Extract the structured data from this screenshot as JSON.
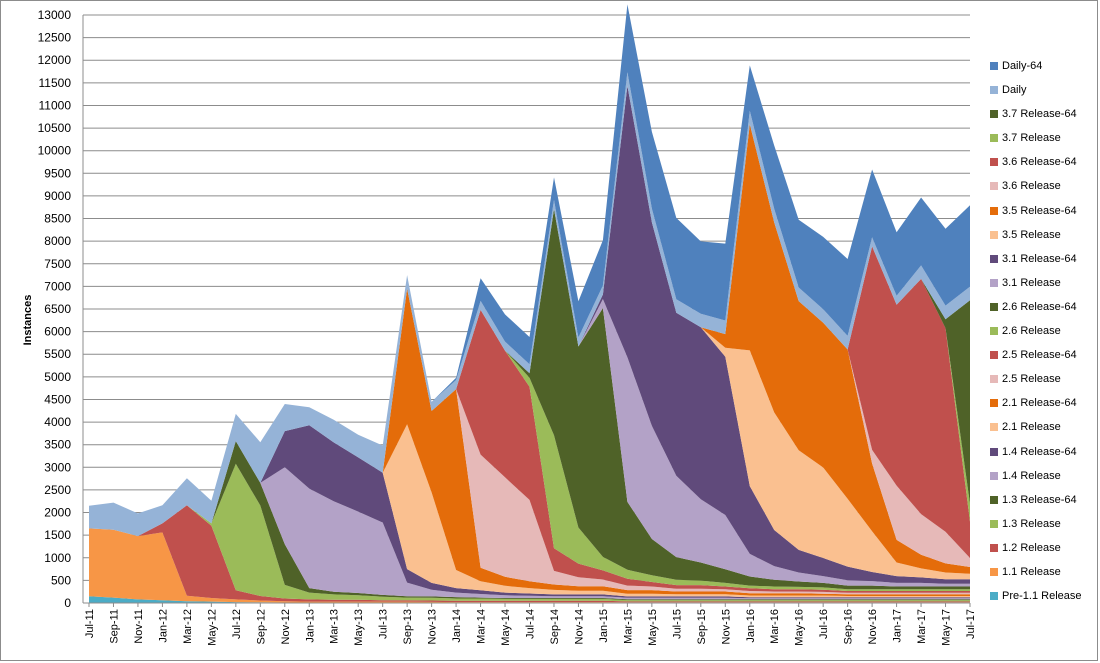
{
  "chart_data": {
    "type": "area",
    "stacked": true,
    "title": "",
    "xlabel": "",
    "ylabel": "Instances",
    "ylim": [
      0,
      13000
    ],
    "ytick_step": 500,
    "grid": "horizontal",
    "legend_position": "right",
    "x": [
      "Jul-11",
      "Sep-11",
      "Nov-11",
      "Jan-12",
      "Mar-12",
      "May-12",
      "Jul-12",
      "Sep-12",
      "Nov-12",
      "Jan-13",
      "Mar-13",
      "May-13",
      "Jul-13",
      "Sep-13",
      "Nov-13",
      "Jan-14",
      "Mar-14",
      "May-14",
      "Jul-14",
      "Sep-14",
      "Nov-14",
      "Jan-15",
      "Mar-15",
      "May-15",
      "Jul-15",
      "Sep-15",
      "Nov-15",
      "Jan-16",
      "Mar-16",
      "May-16",
      "Jul-16",
      "Sep-16",
      "Nov-16",
      "Jan-17",
      "Mar-17",
      "May-17",
      "Jul-17"
    ],
    "series": [
      {
        "name": "Pre-1.1 Release",
        "color": "#4bacc6",
        "values": [
          150,
          120,
          80,
          60,
          40,
          30,
          20,
          15,
          10,
          10,
          10,
          10,
          10,
          10,
          5,
          5,
          5,
          5,
          5,
          5,
          5,
          5,
          5,
          5,
          5,
          5,
          5,
          5,
          5,
          5,
          5,
          5,
          5,
          5,
          5,
          5,
          5
        ]
      },
      {
        "name": "1.1 Release",
        "color": "#f79646",
        "values": [
          1500,
          1500,
          1400,
          1500,
          120,
          80,
          60,
          40,
          30,
          20,
          20,
          20,
          20,
          20,
          20,
          15,
          15,
          15,
          15,
          15,
          15,
          15,
          10,
          10,
          10,
          10,
          10,
          10,
          10,
          10,
          10,
          10,
          10,
          10,
          10,
          10,
          10
        ]
      },
      {
        "name": "1.2 Release",
        "color": "#c0504d",
        "values": [
          0,
          0,
          0,
          200,
          2000,
          1600,
          200,
          100,
          60,
          50,
          40,
          40,
          30,
          30,
          30,
          30,
          30,
          30,
          30,
          30,
          30,
          30,
          20,
          20,
          20,
          20,
          20,
          20,
          20,
          20,
          20,
          20,
          20,
          20,
          20,
          20,
          20
        ]
      },
      {
        "name": "1.3 Release",
        "color": "#9bbb59",
        "values": [
          0,
          0,
          0,
          0,
          0,
          50,
          2800,
          2000,
          300,
          150,
          120,
          100,
          80,
          60,
          60,
          50,
          50,
          40,
          40,
          40,
          40,
          40,
          30,
          30,
          30,
          30,
          30,
          30,
          30,
          30,
          30,
          30,
          30,
          30,
          30,
          30,
          30
        ]
      },
      {
        "name": "1.3 Release-64",
        "color": "#4f6228",
        "values": [
          0,
          0,
          0,
          0,
          0,
          0,
          500,
          500,
          900,
          100,
          60,
          50,
          40,
          30,
          30,
          30,
          20,
          20,
          20,
          20,
          20,
          20,
          20,
          20,
          20,
          20,
          20,
          20,
          20,
          20,
          20,
          20,
          20,
          20,
          20,
          20,
          20
        ]
      },
      {
        "name": "1.4 Release",
        "color": "#b3a2c7",
        "values": [
          0,
          0,
          0,
          0,
          0,
          0,
          0,
          0,
          1700,
          2200,
          2000,
          1800,
          1600,
          300,
          150,
          100,
          80,
          60,
          50,
          40,
          40,
          40,
          30,
          30,
          30,
          30,
          30,
          20,
          20,
          20,
          20,
          20,
          20,
          20,
          20,
          20,
          20
        ]
      },
      {
        "name": "1.4 Release-64",
        "color": "#604a7b",
        "values": [
          0,
          0,
          0,
          0,
          0,
          0,
          0,
          0,
          800,
          1400,
          1300,
          1200,
          1100,
          300,
          150,
          100,
          80,
          60,
          50,
          40,
          40,
          40,
          30,
          30,
          30,
          30,
          30,
          20,
          20,
          20,
          20,
          20,
          20,
          20,
          20,
          20,
          20
        ]
      },
      {
        "name": "2.1 Release",
        "color": "#fac090",
        "values": [
          0,
          0,
          0,
          0,
          0,
          0,
          0,
          0,
          0,
          0,
          0,
          0,
          0,
          3200,
          2000,
          400,
          200,
          150,
          120,
          100,
          80,
          80,
          60,
          60,
          50,
          50,
          50,
          40,
          40,
          40,
          40,
          30,
          30,
          30,
          30,
          30,
          30
        ]
      },
      {
        "name": "2.1 Release-64",
        "color": "#e46c0a",
        "values": [
          0,
          0,
          0,
          0,
          0,
          0,
          0,
          0,
          0,
          0,
          0,
          0,
          0,
          3000,
          1800,
          4000,
          300,
          200,
          150,
          120,
          100,
          100,
          80,
          80,
          60,
          60,
          60,
          50,
          50,
          50,
          40,
          40,
          40,
          40,
          40,
          40,
          40
        ]
      },
      {
        "name": "2.5 Release",
        "color": "#e6b9b8",
        "values": [
          0,
          0,
          0,
          0,
          0,
          0,
          0,
          0,
          0,
          0,
          0,
          0,
          0,
          0,
          0,
          0,
          2500,
          2200,
          1800,
          300,
          200,
          150,
          100,
          80,
          60,
          60,
          50,
          50,
          40,
          40,
          40,
          30,
          30,
          30,
          30,
          30,
          30
        ]
      },
      {
        "name": "2.5 Release-64",
        "color": "#c0504d",
        "values": [
          0,
          0,
          0,
          0,
          0,
          0,
          0,
          0,
          0,
          0,
          0,
          0,
          0,
          0,
          0,
          0,
          3200,
          2800,
          2500,
          500,
          300,
          200,
          150,
          100,
          80,
          80,
          60,
          60,
          50,
          50,
          50,
          40,
          40,
          40,
          40,
          40,
          40
        ]
      },
      {
        "name": "2.6 Release",
        "color": "#9bbb59",
        "values": [
          0,
          0,
          0,
          0,
          0,
          0,
          0,
          0,
          0,
          0,
          0,
          0,
          0,
          0,
          0,
          0,
          0,
          0,
          200,
          2500,
          800,
          300,
          200,
          150,
          120,
          100,
          80,
          60,
          60,
          50,
          50,
          40,
          40,
          40,
          40,
          40,
          40
        ]
      },
      {
        "name": "2.6 Release-64",
        "color": "#4f6228",
        "values": [
          0,
          0,
          0,
          0,
          0,
          0,
          0,
          0,
          0,
          0,
          0,
          0,
          0,
          0,
          0,
          0,
          0,
          0,
          100,
          5000,
          4000,
          5500,
          1500,
          800,
          500,
          400,
          300,
          200,
          150,
          120,
          100,
          80,
          80,
          60,
          60,
          60,
          60
        ]
      },
      {
        "name": "3.1 Release",
        "color": "#b3a2c7",
        "values": [
          0,
          0,
          0,
          0,
          0,
          0,
          0,
          0,
          0,
          0,
          0,
          0,
          0,
          0,
          0,
          0,
          0,
          0,
          0,
          0,
          0,
          200,
          3200,
          2500,
          1800,
          1400,
          1200,
          500,
          300,
          200,
          150,
          120,
          100,
          80,
          80,
          60,
          60
        ]
      },
      {
        "name": "3.1 Release-64",
        "color": "#604a7b",
        "values": [
          0,
          0,
          0,
          0,
          0,
          0,
          0,
          0,
          0,
          0,
          0,
          0,
          0,
          0,
          0,
          0,
          0,
          0,
          0,
          0,
          0,
          100,
          6000,
          4500,
          3600,
          3800,
          3500,
          1500,
          800,
          500,
          400,
          300,
          200,
          150,
          120,
          100,
          100
        ]
      },
      {
        "name": "3.5 Release",
        "color": "#fac090",
        "values": [
          0,
          0,
          0,
          0,
          0,
          0,
          0,
          0,
          0,
          0,
          0,
          0,
          0,
          0,
          0,
          0,
          0,
          0,
          0,
          0,
          0,
          0,
          0,
          0,
          0,
          0,
          200,
          3000,
          2600,
          2200,
          2000,
          1500,
          900,
          300,
          200,
          150,
          120
        ]
      },
      {
        "name": "3.5 Release-64",
        "color": "#e46c0a",
        "values": [
          0,
          0,
          0,
          0,
          0,
          0,
          0,
          0,
          0,
          0,
          0,
          0,
          0,
          0,
          0,
          0,
          0,
          0,
          0,
          0,
          0,
          0,
          0,
          0,
          0,
          0,
          300,
          5000,
          4200,
          3300,
          3200,
          3300,
          1500,
          500,
          300,
          200,
          150
        ]
      },
      {
        "name": "3.6 Release",
        "color": "#e6b9b8",
        "values": [
          0,
          0,
          0,
          0,
          0,
          0,
          0,
          0,
          0,
          0,
          0,
          0,
          0,
          0,
          0,
          0,
          0,
          0,
          0,
          0,
          0,
          0,
          0,
          0,
          0,
          0,
          0,
          0,
          0,
          0,
          0,
          0,
          300,
          1200,
          900,
          700,
          200
        ]
      },
      {
        "name": "3.6 Release-64",
        "color": "#c0504d",
        "values": [
          0,
          0,
          0,
          0,
          0,
          0,
          0,
          0,
          0,
          0,
          0,
          0,
          0,
          0,
          0,
          0,
          0,
          0,
          0,
          0,
          0,
          0,
          0,
          0,
          0,
          0,
          0,
          0,
          0,
          0,
          0,
          0,
          4500,
          4000,
          5200,
          4500,
          800
        ]
      },
      {
        "name": "3.7 Release",
        "color": "#9bbb59",
        "values": [
          0,
          0,
          0,
          0,
          0,
          0,
          0,
          0,
          0,
          0,
          0,
          0,
          0,
          0,
          0,
          0,
          0,
          0,
          0,
          0,
          0,
          0,
          0,
          0,
          0,
          0,
          0,
          0,
          0,
          0,
          0,
          0,
          0,
          0,
          0,
          0,
          400
        ]
      },
      {
        "name": "3.7 Release-64",
        "color": "#4f6228",
        "values": [
          0,
          0,
          0,
          0,
          0,
          0,
          0,
          0,
          0,
          0,
          0,
          0,
          0,
          0,
          0,
          0,
          0,
          0,
          0,
          0,
          0,
          0,
          0,
          0,
          0,
          0,
          0,
          0,
          0,
          0,
          0,
          0,
          0,
          0,
          0,
          200,
          4500
        ]
      },
      {
        "name": "Daily",
        "color": "#95b3d7",
        "values": [
          500,
          600,
          500,
          400,
          600,
          500,
          600,
          900,
          600,
          400,
          500,
          500,
          600,
          300,
          200,
          200,
          200,
          200,
          200,
          200,
          200,
          200,
          300,
          300,
          300,
          300,
          300,
          300,
          300,
          300,
          300,
          300,
          200,
          200,
          300,
          300,
          300
        ]
      },
      {
        "name": "Daily-64",
        "color": "#4f81bd",
        "values": [
          0,
          0,
          0,
          0,
          0,
          0,
          0,
          0,
          0,
          0,
          0,
          0,
          0,
          0,
          0,
          50,
          500,
          600,
          600,
          500,
          800,
          1000,
          1500,
          1700,
          1800,
          1600,
          1700,
          1000,
          1400,
          1500,
          1600,
          1700,
          1500,
          1400,
          1500,
          1700,
          1800
        ]
      }
    ]
  },
  "legend": {
    "order": [
      "Daily-64",
      "Daily",
      "3.7 Release-64",
      "3.7 Release",
      "3.6 Release-64",
      "3.6 Release",
      "3.5 Release-64",
      "3.5 Release",
      "3.1 Release-64",
      "3.1 Release",
      "2.6 Release-64",
      "2.6 Release",
      "2.5 Release-64",
      "2.5 Release",
      "2.1 Release-64",
      "2.1 Release",
      "1.4 Release-64",
      "1.4 Release",
      "1.3 Release-64",
      "1.3 Release",
      "1.2 Release",
      "1.1 Release",
      "Pre-1.1 Release"
    ]
  }
}
